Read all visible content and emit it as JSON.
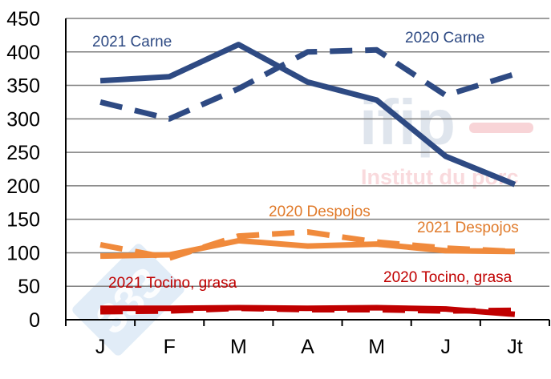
{
  "chart_data": {
    "type": "line",
    "title": "",
    "xlabel": "",
    "ylabel": "",
    "categories": [
      "J",
      "F",
      "M",
      "A",
      "M",
      "J",
      "Jt"
    ],
    "ylim": [
      0,
      450
    ],
    "yticks": [
      0,
      50,
      100,
      150,
      200,
      250,
      300,
      350,
      400,
      450
    ],
    "grid": true,
    "series": [
      {
        "name": "2021 Carne",
        "color": "#2e4a83",
        "dashed": false,
        "values": [
          357,
          363,
          411,
          355,
          328,
          244,
          202
        ]
      },
      {
        "name": "2020 Carne",
        "color": "#2e4a83",
        "dashed": true,
        "values": [
          325,
          300,
          345,
          400,
          403,
          335,
          367
        ]
      },
      {
        "name": "2021 Despojos",
        "color": "#f08a3c",
        "dashed": false,
        "values": [
          95,
          97,
          118,
          110,
          113,
          103,
          102
        ]
      },
      {
        "name": "2020 Despojos",
        "color": "#f08a3c",
        "dashed": true,
        "values": [
          112,
          92,
          125,
          131,
          116,
          107,
          102
        ]
      },
      {
        "name": "2021 Tocino, grasa",
        "color": "#c00000",
        "dashed": false,
        "values": [
          17,
          17,
          18,
          17,
          18,
          16,
          8
        ]
      },
      {
        "name": "2020 Tocino, grasa",
        "color": "#c00000",
        "dashed": true,
        "values": [
          12,
          13,
          17,
          15,
          15,
          13,
          14
        ]
      }
    ],
    "annotations": [
      {
        "text": "2021 Carne",
        "color": "#2e4a83"
      },
      {
        "text": "2020 Carne",
        "color": "#2e4a83"
      },
      {
        "text": "2020 Despojos",
        "color": "#e07a2a"
      },
      {
        "text": "2021 Despojos",
        "color": "#e07a2a"
      },
      {
        "text": "2021 Tocino, grasa",
        "color": "#c00000"
      },
      {
        "text": "2020 Tocino, grasa",
        "color": "#c00000"
      }
    ]
  },
  "watermark": {
    "logo_text": "ifip",
    "tagline": "Institut du porc",
    "badge_text": "333"
  }
}
